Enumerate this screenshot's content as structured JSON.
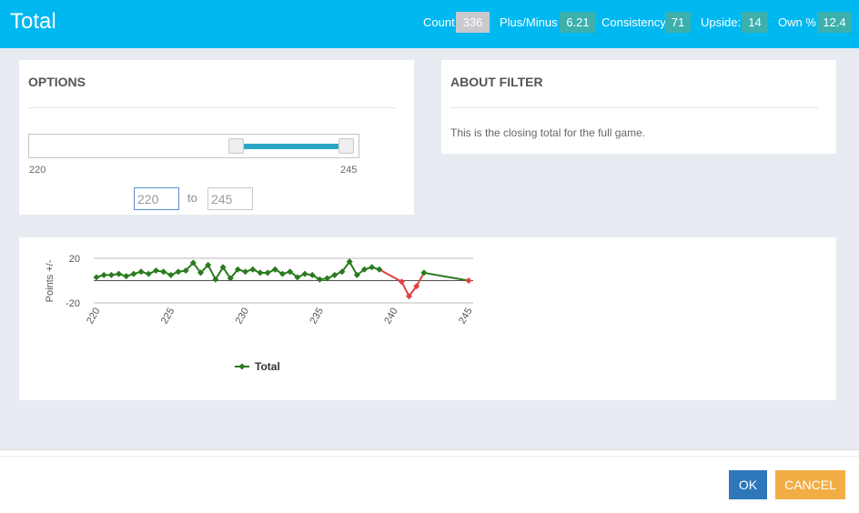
{
  "header": {
    "title": "Total",
    "stats": [
      {
        "label": "Count",
        "value": "336"
      },
      {
        "label": "Plus/Minus",
        "value": "6.21"
      },
      {
        "label": "Consistency",
        "value": "71"
      },
      {
        "label": "Upside:",
        "value": "14"
      },
      {
        "label": "Own %",
        "value": "12.4"
      }
    ]
  },
  "options": {
    "heading": "OPTIONS",
    "slider": {
      "min_label": "220",
      "max_label": "245",
      "low": 220,
      "high": 245
    },
    "from_value": "220",
    "to_label": "to",
    "to_value": "245"
  },
  "about": {
    "heading": "ABOUT FILTER",
    "text": "This is the closing total for the full game."
  },
  "chart_data": {
    "type": "line",
    "ylabel": "Points +/-",
    "xlabel": "",
    "x_ticks": [
      "220",
      "225",
      "230",
      "235",
      "240",
      "245"
    ],
    "y_ticks": [
      "20",
      "-20"
    ],
    "xlim": [
      220,
      245
    ],
    "ylim": [
      -20,
      20
    ],
    "legend": "bottom",
    "colors": {
      "positive": "#2a7a1e",
      "negative": "#e04040"
    },
    "series": [
      {
        "name": "Total",
        "x": [
          220,
          220.5,
          221,
          221.5,
          222,
          222.5,
          223,
          223.5,
          224,
          224.5,
          225,
          225.5,
          226,
          226.5,
          227,
          227.5,
          228,
          228.5,
          229,
          229.5,
          230,
          230.5,
          231,
          231.5,
          232,
          232.5,
          233,
          233.5,
          234,
          234.5,
          235,
          235.5,
          236,
          236.5,
          237,
          237.5,
          238,
          238.5,
          239,
          240.5,
          241,
          241.5,
          242,
          245
        ],
        "y": [
          3,
          5,
          5,
          6,
          4,
          6,
          8,
          6,
          9,
          8,
          5,
          8,
          9,
          16,
          7,
          14,
          1,
          12,
          2,
          10,
          8,
          10,
          7,
          7,
          10,
          6,
          8,
          3,
          6,
          5,
          1,
          2,
          5,
          8,
          17,
          5,
          10,
          12,
          10,
          -1,
          -14,
          -5,
          7,
          0
        ]
      }
    ]
  },
  "footer": {
    "ok_label": "OK",
    "cancel_label": "CANCEL"
  }
}
